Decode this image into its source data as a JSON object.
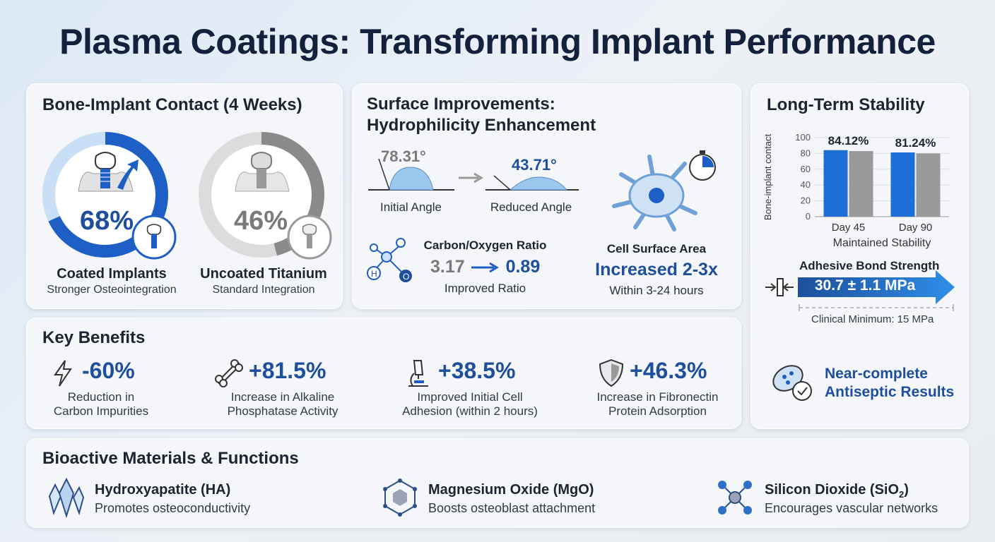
{
  "title": "Plasma Coatings: Transforming Implant Performance",
  "bone_contact": {
    "title": "Bone-Implant Contact (4 Weeks)",
    "coated": {
      "value_label": "68%",
      "value": 68,
      "name": "Coated Implants",
      "sub": "Stronger Osteointegration",
      "color": "#1d5fc4"
    },
    "uncoated": {
      "value_label": "46%",
      "value": 46,
      "name": "Uncoated Titanium",
      "sub": "Standard Integration",
      "color": "#8a8a8a"
    }
  },
  "surface": {
    "title_line1": "Surface Improvements:",
    "title_line2": "Hydrophilicity Enhancement",
    "initial_angle": "78.31°",
    "initial_label": "Initial Angle",
    "reduced_angle": "43.71°",
    "reduced_label": "Reduced Angle",
    "co_title": "Carbon/Oxygen Ratio",
    "co_from": "3.17",
    "co_to": "0.89",
    "co_label": "Improved Ratio",
    "molecule_h": "H",
    "molecule_o": "O",
    "cell_title": "Cell Surface Area",
    "cell_value": "Increased 2-3x",
    "cell_sub": "Within 3-24 hours"
  },
  "stability": {
    "title": "Long-Term Stability",
    "bond_title": "Adhesive Bond Strength",
    "bond_value": "30.7 ± 1.1 MPa",
    "bond_min": "Clinical Minimum: 15 MPa",
    "antiseptic_line1": "Near-complete",
    "antiseptic_line2": "Antiseptic Results"
  },
  "chart_data": {
    "type": "bar",
    "categories": [
      "Day 45",
      "Day 90"
    ],
    "series": [
      {
        "values": [
          84.12,
          81.24
        ],
        "color": "#1d6fd8"
      },
      {
        "values": [
          83,
          80
        ],
        "color": "#9a9a9a"
      }
    ],
    "data_labels": [
      "84.12%",
      "81.24%"
    ],
    "ylabel": "Bone-implant contact",
    "xlabel": "Maintained Stability",
    "ylim": [
      0,
      100
    ],
    "yticks": [
      0,
      20,
      40,
      60,
      80,
      100
    ],
    "grid": true
  },
  "benefits": {
    "title": "Key Benefits",
    "items": [
      {
        "value": "-60%",
        "line1": "Reduction in",
        "line2": "Carbon Impurities",
        "icon": "lightning-icon"
      },
      {
        "value": "+81.5%",
        "line1": "Increase in Alkaline",
        "line2": "Phosphatase Activity",
        "icon": "bone-icon"
      },
      {
        "value": "+38.5%",
        "line1": "Improved Initial Cell",
        "line2": "Adhesion (within 2 hours)",
        "icon": "microscope-icon"
      },
      {
        "value": "+46.3%",
        "line1": "Increase in Fibronectin",
        "line2": "Protein Adsorption",
        "icon": "shield-icon"
      }
    ]
  },
  "materials": {
    "title": "Bioactive Materials & Functions",
    "items": [
      {
        "name": "Hydroxyapatite (HA)",
        "desc": "Promotes osteoconductivity",
        "icon": "crystal-icon"
      },
      {
        "name": "Magnesium Oxide (MgO)",
        "desc": "Boosts osteoblast attachment",
        "icon": "hexagon-molecule-icon"
      },
      {
        "name_main": "Silicon Dioxide (SiO",
        "name_sub": "2",
        "name_end": ")",
        "desc": "Encourages vascular networks",
        "icon": "network-molecule-icon"
      }
    ]
  }
}
